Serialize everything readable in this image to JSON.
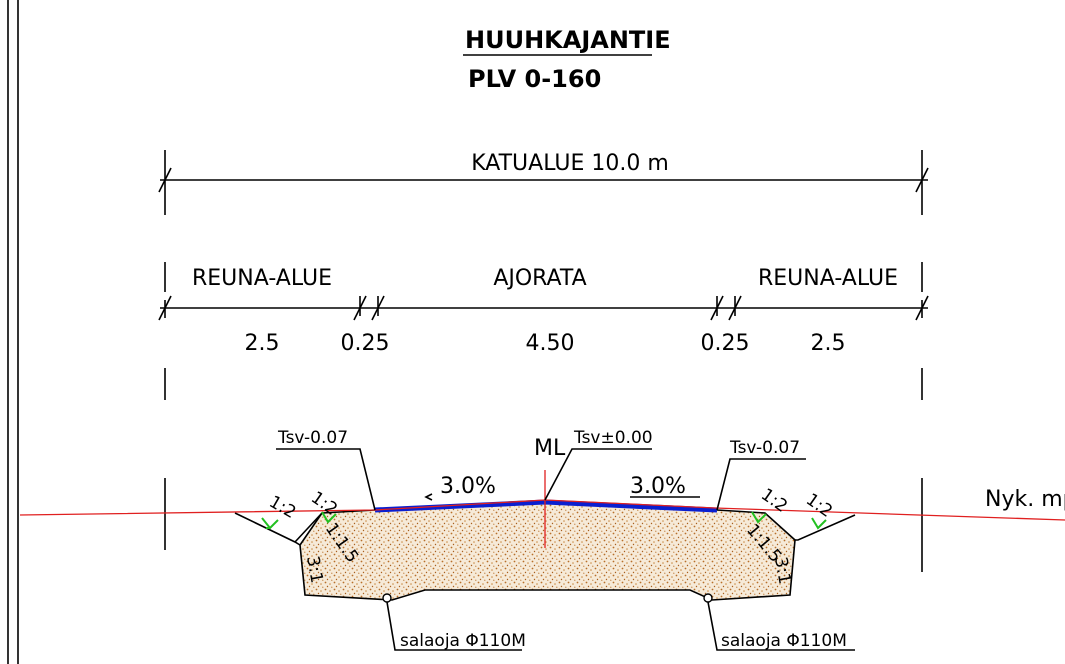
{
  "title": "HUUHKAJANTIE",
  "subtitle": "PLV 0-160",
  "dimensions": {
    "total": "KATUALUE 10.0 m",
    "zones": [
      "REUNA-ALUE",
      "AJORATA",
      "REUNA-ALUE"
    ],
    "widths": [
      "2.5",
      "0.25",
      "4.50",
      "0.25",
      "2.5"
    ]
  },
  "levels": {
    "left": "Tsv-0.07",
    "centre_mark": "ML",
    "centre": "Tsv±0.00",
    "right": "Tsv-0.07"
  },
  "crossfall": {
    "left": "3.0%",
    "right": "3.0%"
  },
  "ground": "Nyk. mp",
  "slopes": {
    "outer_left": "1:2",
    "inner_left": "1:2",
    "inner_right": "1:2",
    "outer_right": "1:2",
    "fill_left": "1:1.5",
    "fill_right": "1:1.5",
    "base_left": "3:1",
    "base_right": "3:1"
  },
  "drains": [
    "salaoja Φ110M",
    "salaoja Φ110M"
  ]
}
